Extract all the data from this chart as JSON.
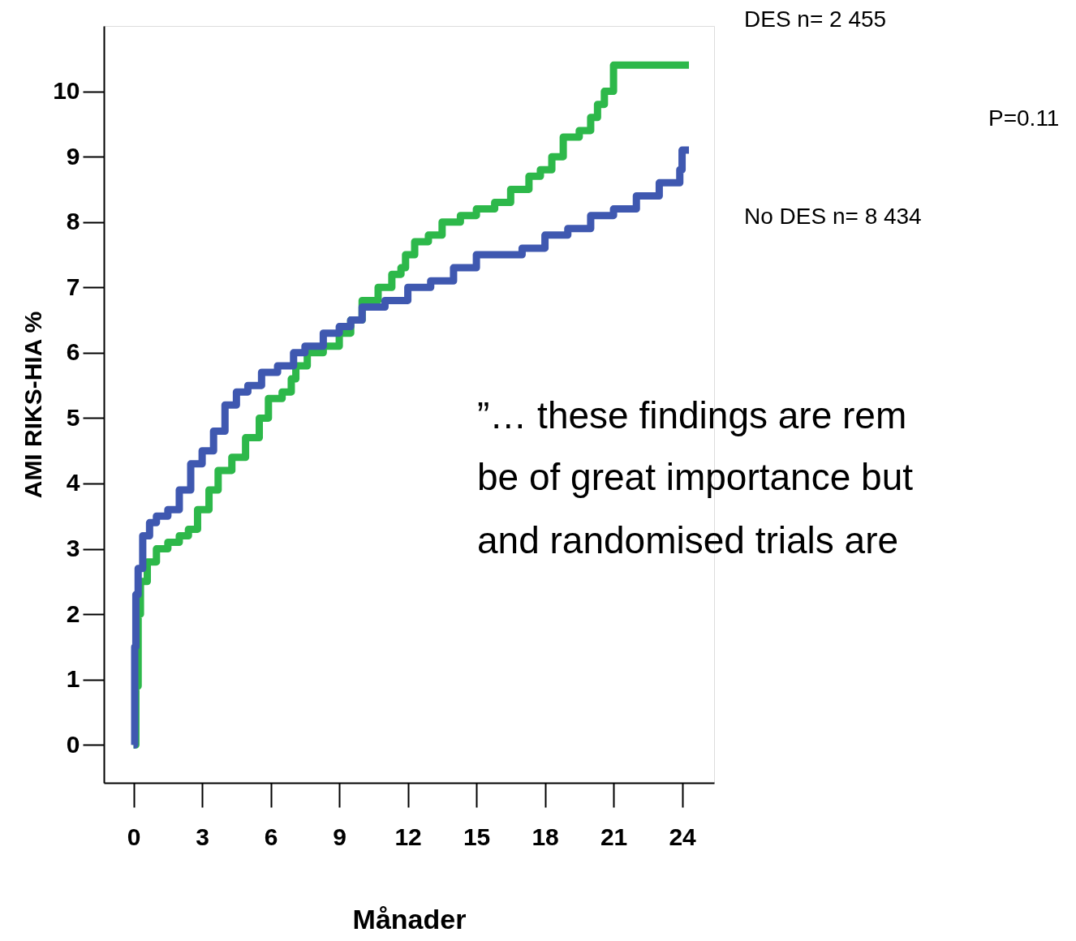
{
  "chart_data": {
    "type": "step",
    "xlabel": "Månader",
    "ylabel": "AMI RIKS-HIA %",
    "xlim": [
      -1.3,
      25.4
    ],
    "ylim": [
      -0.58,
      11.0
    ],
    "xticks": [
      0,
      3,
      6,
      9,
      12,
      15,
      18,
      21,
      24
    ],
    "yticks": [
      0,
      1,
      2,
      3,
      4,
      5,
      6,
      7,
      8,
      9,
      10
    ],
    "grid": false,
    "line_style": "solid",
    "marker": "none",
    "series": [
      {
        "name": "DES n= 2 455",
        "color": "#2db84a",
        "x": [
          0,
          0.1,
          0.2,
          0.3,
          0.6,
          1,
          1.5,
          2,
          2.4,
          2.8,
          3.3,
          3.7,
          4.3,
          4.9,
          5.5,
          5.9,
          6.5,
          6.9,
          7.1,
          7.6,
          8.3,
          9,
          9.5,
          10,
          10.7,
          11.3,
          11.7,
          11.9,
          12.3,
          12.9,
          13.5,
          14.3,
          15,
          15.8,
          16.5,
          17.3,
          17.8,
          18.3,
          18.8,
          19.5,
          20,
          20.3,
          20.6,
          21,
          24.3
        ],
        "values": [
          0,
          0.9,
          2.0,
          2.5,
          2.8,
          3.0,
          3.1,
          3.2,
          3.3,
          3.6,
          3.9,
          4.2,
          4.4,
          4.7,
          5.0,
          5.3,
          5.4,
          5.6,
          5.8,
          6.0,
          6.1,
          6.3,
          6.5,
          6.8,
          7.0,
          7.2,
          7.3,
          7.5,
          7.7,
          7.8,
          8.0,
          8.1,
          8.2,
          8.3,
          8.5,
          8.7,
          8.8,
          9.0,
          9.3,
          9.4,
          9.6,
          9.8,
          10.0,
          10.4,
          10.4
        ]
      },
      {
        "name": "No DES n= 8 434",
        "color": "#3f58b0",
        "x": [
          0,
          0.05,
          0.1,
          0.2,
          0.4,
          0.7,
          1,
          1.5,
          2,
          2.5,
          3,
          3.5,
          4,
          4.5,
          5,
          5.6,
          6.3,
          7,
          7.5,
          8.3,
          9,
          9.5,
          10,
          11,
          12,
          13,
          14,
          15,
          16,
          17,
          18,
          19,
          20,
          21,
          22,
          23,
          23.9,
          24,
          24.3
        ],
        "values": [
          0,
          1.5,
          2.3,
          2.7,
          3.2,
          3.4,
          3.5,
          3.6,
          3.9,
          4.3,
          4.5,
          4.8,
          5.2,
          5.4,
          5.5,
          5.7,
          5.8,
          6.0,
          6.1,
          6.3,
          6.4,
          6.5,
          6.7,
          6.8,
          7.0,
          7.1,
          7.3,
          7.5,
          7.5,
          7.6,
          7.8,
          7.9,
          8.1,
          8.2,
          8.4,
          8.6,
          8.8,
          9.1,
          9.1
        ]
      }
    ],
    "annotations": [
      "P=0.11",
      "”… these findings are rem",
      "be of great importance but",
      "and randomised trials are"
    ]
  }
}
